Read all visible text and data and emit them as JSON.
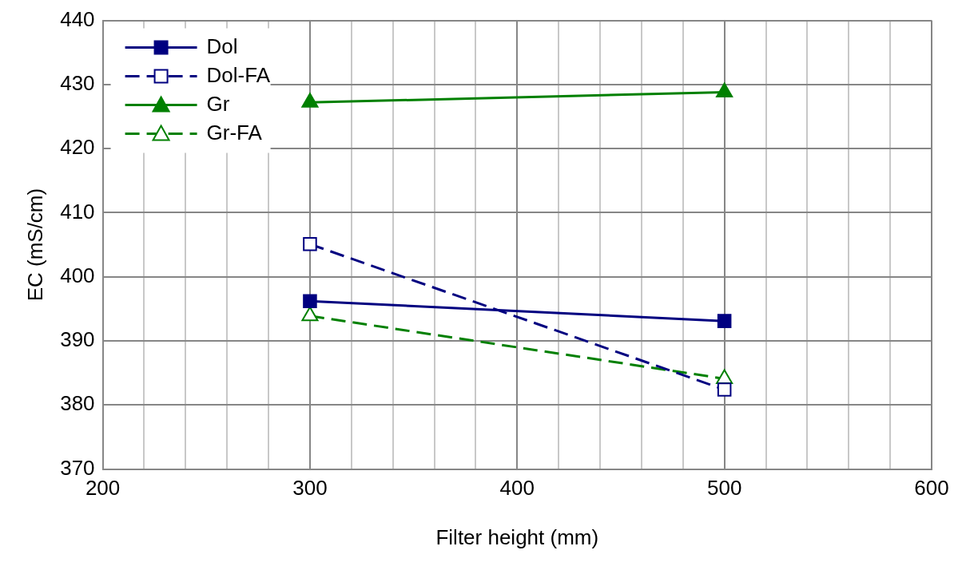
{
  "chart_data": {
    "type": "line",
    "xlabel": "Filter height (mm)",
    "ylabel": "EC (mS/cm)",
    "xlim": [
      200,
      600
    ],
    "xticks": [
      200,
      {
        "value": 220,
        "label": null
      },
      {
        "value": 240,
        "label": null
      },
      {
        "value": 260,
        "label": null
      },
      {
        "value": 280,
        "label": null
      },
      300,
      {
        "value": 320,
        "label": null
      },
      {
        "value": 340,
        "label": null
      },
      {
        "value": 360,
        "label": null
      },
      {
        "value": 380,
        "label": null
      },
      400,
      {
        "value": 420,
        "label": null
      },
      {
        "value": 440,
        "label": null
      },
      {
        "value": 460,
        "label": null
      },
      {
        "value": 480,
        "label": null
      },
      500,
      {
        "value": 520,
        "label": null
      },
      {
        "value": 540,
        "label": null
      },
      {
        "value": 560,
        "label": null
      },
      {
        "value": 580,
        "label": null
      },
      600
    ],
    "ylim": [
      370,
      440
    ],
    "yticks": [
      370,
      380,
      390,
      400,
      410,
      420,
      430,
      440
    ],
    "grid": true,
    "legend": "top left",
    "x": [
      300,
      500
    ],
    "series": [
      {
        "name": "Dol",
        "color": "#000080",
        "values": [
          396.2,
          393.1
        ],
        "marker": "square",
        "line_style": "solid"
      },
      {
        "name": "Dol-FA",
        "color": "#000080",
        "values": [
          405.1,
          382.4
        ],
        "marker": "square",
        "line_style": "dashed"
      },
      {
        "name": "Gr",
        "color": "#008000",
        "values": [
          427.2,
          428.8
        ],
        "marker": "triangle",
        "line_style": "solid"
      },
      {
        "name": "Gr-FA",
        "color": "#008000",
        "values": [
          393.9,
          384.1
        ],
        "marker": "triangle",
        "line_style": "dashed"
      }
    ]
  }
}
